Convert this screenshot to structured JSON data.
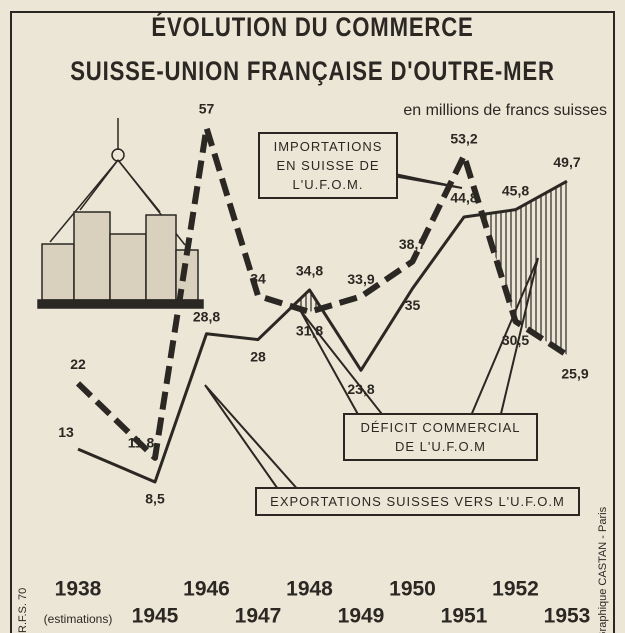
{
  "chart_data": {
    "type": "line",
    "title": [
      "ÉVOLUTION DU COMMERCE",
      "SUISSE-UNION FRANÇAISE D'OUTRE-MER"
    ],
    "subtitle": "en millions de francs suisses",
    "categories": [
      "1938",
      "1945",
      "1946",
      "1947",
      "1948",
      "1949",
      "1950",
      "1951",
      "1952",
      "1953"
    ],
    "category_note": "(estimations)",
    "series": [
      {
        "name": "IMPORTATIONS EN SUISSE DE L'U.F.O.M.",
        "color": "#2b2824",
        "style": "dashed",
        "values": [
          22,
          11.8,
          57,
          34,
          31.8,
          33.9,
          38.7,
          53.2,
          30.5,
          25.9
        ],
        "value_labels": [
          "22",
          "11,8",
          "57",
          "34",
          "31,8",
          "33,9",
          "38,7",
          "53,2",
          "30,5",
          "25,9"
        ]
      },
      {
        "name": "EXPORTATIONS SUISSES VERS L'U.F.O.M",
        "color": "#2b2824",
        "style": "solid",
        "values": [
          13,
          8.5,
          28.8,
          28,
          34.8,
          23.8,
          35,
          44.8,
          45.8,
          49.7
        ],
        "value_labels": [
          "13",
          "8,5",
          "28,8",
          "28",
          "34,8",
          "23,8",
          "35",
          "44,8",
          "45,8",
          "49,7"
        ]
      }
    ],
    "deficit_label": "DÉFICIT COMMERCIAL DE L'U.F.O.M",
    "credits": [
      "Graphique CASTAN - Paris",
      "R.F.S. 70"
    ]
  }
}
